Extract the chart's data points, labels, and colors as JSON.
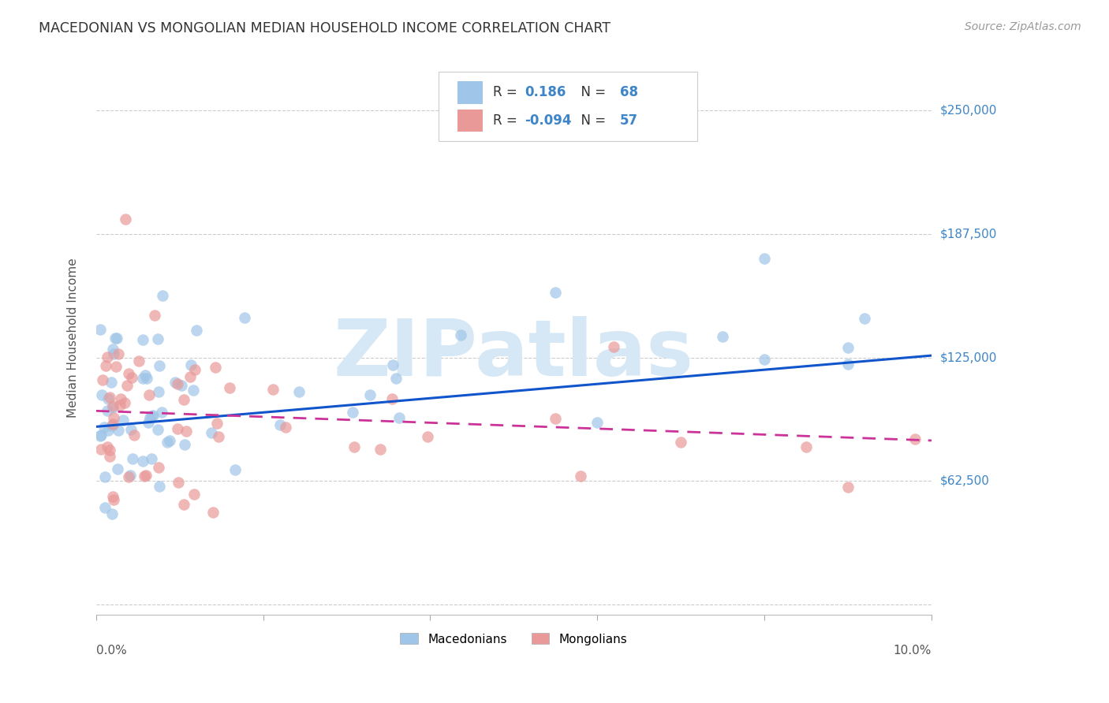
{
  "title": "MACEDONIAN VS MONGOLIAN MEDIAN HOUSEHOLD INCOME CORRELATION CHART",
  "source": "Source: ZipAtlas.com",
  "ylabel": "Median Household Income",
  "xlim": [
    0.0,
    10.0
  ],
  "ylim": [
    -5000,
    275000
  ],
  "ytick_values": [
    0,
    62500,
    125000,
    187500,
    250000
  ],
  "ytick_labels": [
    "",
    "$62,500",
    "$125,000",
    "$187,500",
    "$250,000"
  ],
  "macedonian_R": "0.186",
  "macedonian_N": "68",
  "mongolian_R": "-0.094",
  "mongolian_N": "57",
  "macedonian_color": "#9FC5E8",
  "mongolian_color": "#EA9999",
  "macedonian_line_color": "#1155CC",
  "mongolian_line_color": "#CC3399",
  "watermark": "ZIPatlas",
  "watermark_color": "#D6E8F5",
  "grid_color": "#CCCCCC",
  "mac_line_x0": 0,
  "mac_line_x1": 10,
  "mac_line_y0": 90000,
  "mac_line_y1": 126000,
  "mon_line_x0": 0,
  "mon_line_x1": 10,
  "mon_line_y0": 98000,
  "mon_line_y1": 83000,
  "dot_size": 110,
  "dot_alpha": 0.7,
  "dot_linewidth": 1.5
}
